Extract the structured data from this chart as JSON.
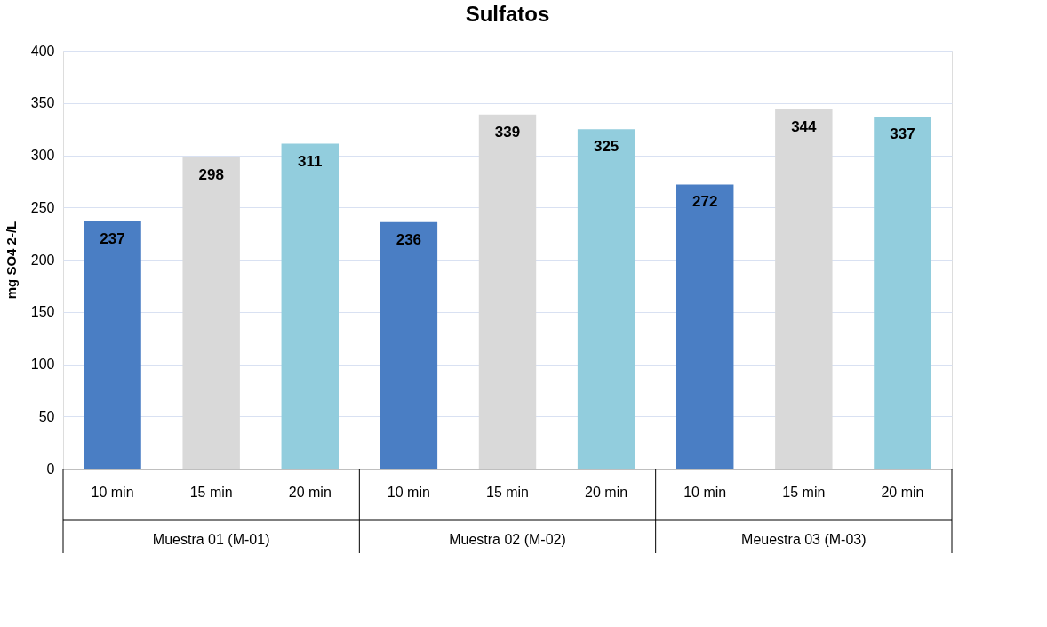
{
  "chart_data": {
    "type": "bar",
    "title": "Sulfatos",
    "ylabel": "mg SO4 2-/L",
    "categories": [
      "10  min",
      "15 min",
      "20 min",
      "10  min",
      "15 min",
      "20 min",
      "10  min",
      "15 min",
      "20 min"
    ],
    "values": [
      237,
      298,
      311,
      236,
      339,
      325,
      272,
      344,
      337
    ],
    "colors": [
      "#4a7ec4",
      "#d9d9d9",
      "#92cddd",
      "#4a7ec4",
      "#d9d9d9",
      "#92cddd",
      "#4a7ec4",
      "#d9d9d9",
      "#92cddd"
    ],
    "ylim": [
      0,
      400
    ],
    "yticks": [
      0,
      50,
      100,
      150,
      200,
      250,
      300,
      350,
      400
    ],
    "grid": "y",
    "data_labels": true,
    "annotations": [
      "Muestra 01 (M-01)",
      "Muestra 02 (M-02)",
      "Meuestra 03 (M-03)"
    ]
  }
}
